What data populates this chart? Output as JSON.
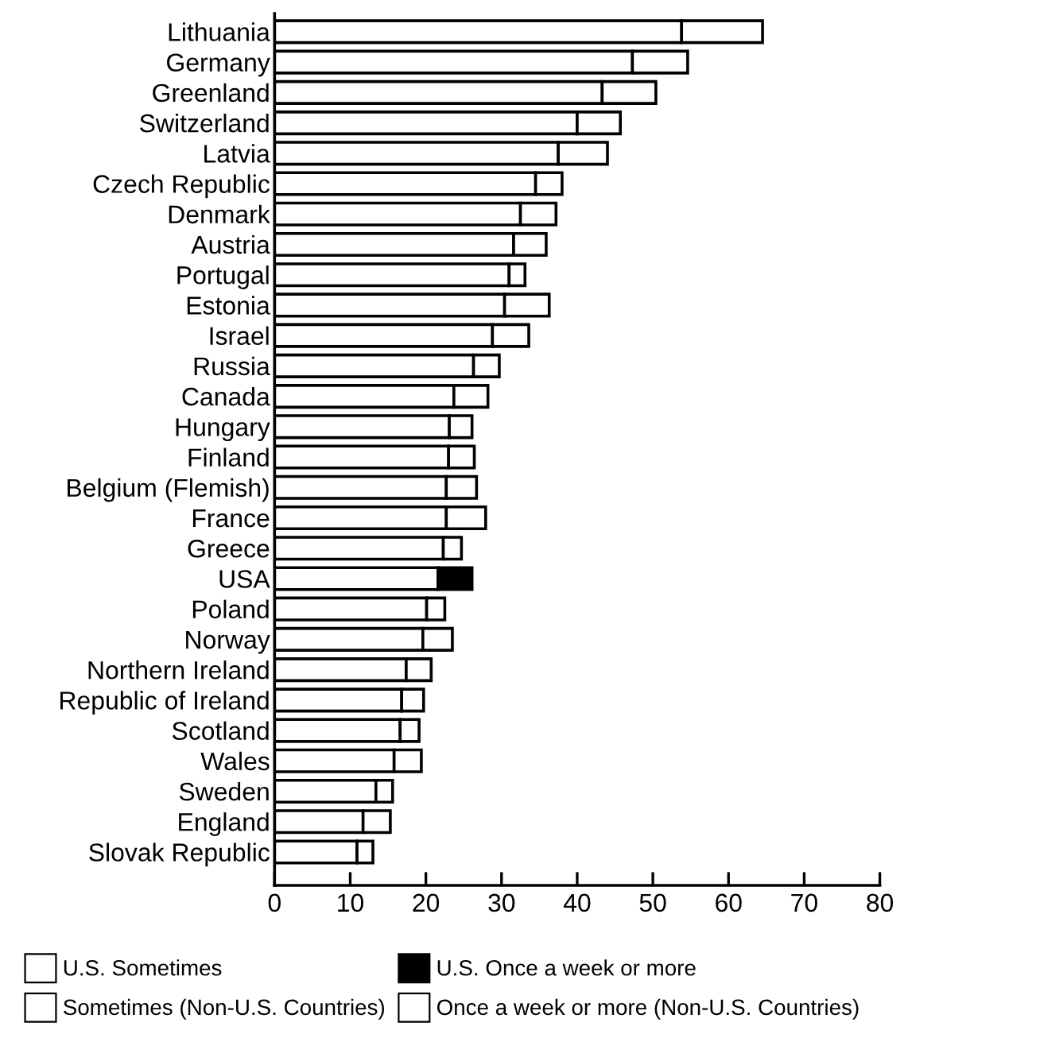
{
  "chart_data": {
    "type": "bar",
    "orientation": "horizontal",
    "stacked": true,
    "legend": "bottom",
    "grid": false,
    "categories": [
      "Lithuania",
      "Germany",
      "Greenland",
      "Switzerland",
      "Latvia",
      "Czech Republic",
      "Denmark",
      "Austria",
      "Portugal",
      "Estonia",
      "Israel",
      "Russia",
      "Canada",
      "Hungary",
      "Finland",
      "Belgium (Flemish)",
      "France",
      "Greece",
      "USA",
      "Poland",
      "Norway",
      "Northern Ireland",
      "Republic of Ireland",
      "Scotland",
      "Wales",
      "Sweden",
      "England",
      "Slovak Republic"
    ],
    "xlim": [
      0,
      80
    ],
    "xticks": [
      0,
      10,
      20,
      30,
      40,
      50,
      60,
      70,
      80
    ],
    "series": [
      {
        "name": "U.S. Sometimes",
        "color": "#ffffff",
        "values": [
          null,
          null,
          null,
          null,
          null,
          null,
          null,
          null,
          null,
          null,
          null,
          null,
          null,
          null,
          null,
          null,
          null,
          null,
          21.6,
          null,
          null,
          null,
          null,
          null,
          null,
          null,
          null,
          null
        ]
      },
      {
        "name": "Sometimes (Non-U.S. Countries)",
        "color": "#ffffff",
        "values": [
          53.8,
          47.3,
          43.3,
          40.0,
          37.5,
          34.5,
          32.5,
          31.6,
          31.0,
          30.4,
          28.8,
          26.3,
          23.7,
          23.1,
          23.0,
          22.7,
          22.7,
          22.3,
          null,
          20.1,
          19.6,
          17.4,
          16.8,
          16.6,
          15.8,
          13.4,
          11.7,
          10.9
        ]
      },
      {
        "name": "U.S. Once a week or more",
        "color": "#000000",
        "values": [
          null,
          null,
          null,
          null,
          null,
          null,
          null,
          null,
          null,
          null,
          null,
          null,
          null,
          null,
          null,
          null,
          null,
          null,
          4.5,
          null,
          null,
          null,
          null,
          null,
          null,
          null,
          null,
          null
        ]
      },
      {
        "name": "Once a week or more (Non-U.S. Countries)",
        "color": "#ffffff",
        "values": [
          10.7,
          7.3,
          7.1,
          5.7,
          6.5,
          3.5,
          4.7,
          4.3,
          2.1,
          5.9,
          4.8,
          3.4,
          4.5,
          3.0,
          3.4,
          4.0,
          5.2,
          2.4,
          null,
          2.4,
          3.9,
          3.3,
          2.9,
          2.5,
          3.6,
          2.2,
          3.6,
          2.1
        ]
      }
    ]
  }
}
